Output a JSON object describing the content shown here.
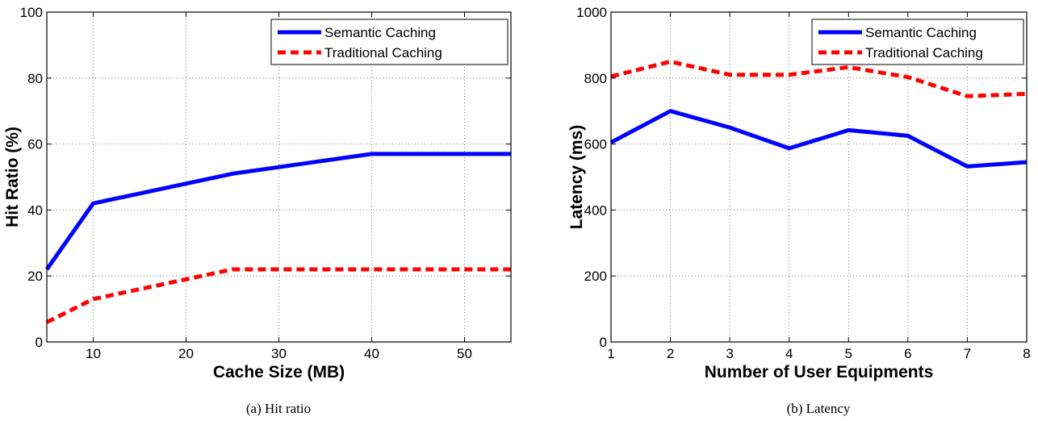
{
  "chart_data": [
    {
      "type": "line",
      "caption": "(a) Hit ratio",
      "xlabel": "Cache Size (MB)",
      "ylabel": "Hit Ratio (%)",
      "xlim": [
        5,
        55
      ],
      "ylim": [
        0,
        100
      ],
      "xticks": [
        10,
        20,
        30,
        40,
        50
      ],
      "yticks": [
        0,
        20,
        40,
        60,
        80,
        100
      ],
      "grid": true,
      "legend_position": "top-right",
      "series": [
        {
          "name": "Semantic Caching",
          "color": "#0000ff",
          "style": "solid",
          "x": [
            5,
            10,
            15,
            20,
            25,
            30,
            35,
            40,
            45,
            50,
            55
          ],
          "y": [
            22,
            42,
            45,
            48,
            51,
            53,
            55,
            57,
            57,
            57,
            57
          ]
        },
        {
          "name": "Traditional Caching",
          "color": "#ff0000",
          "style": "dashed",
          "x": [
            5,
            10,
            15,
            20,
            25,
            30,
            35,
            40,
            45,
            50,
            55
          ],
          "y": [
            6,
            13,
            16,
            19,
            22,
            22,
            22,
            22,
            22,
            22,
            22
          ]
        }
      ]
    },
    {
      "type": "line",
      "caption": "(b) Latency",
      "xlabel": "Number of User Equipments",
      "ylabel": "Latency (ms)",
      "xlim": [
        1,
        8
      ],
      "ylim": [
        0,
        1000
      ],
      "xticks": [
        1,
        2,
        3,
        4,
        5,
        6,
        7,
        8
      ],
      "yticks": [
        0,
        200,
        400,
        600,
        800,
        1000
      ],
      "grid": true,
      "legend_position": "top-right",
      "series": [
        {
          "name": "Semantic Caching",
          "color": "#0000ff",
          "style": "solid",
          "x": [
            1,
            2,
            3,
            4,
            5,
            6,
            7,
            8
          ],
          "y": [
            605,
            700,
            650,
            587,
            642,
            625,
            532,
            545
          ]
        },
        {
          "name": "Traditional Caching",
          "color": "#ff0000",
          "style": "dashed",
          "x": [
            1,
            2,
            3,
            4,
            5,
            6,
            7,
            8
          ],
          "y": [
            805,
            850,
            810,
            810,
            833,
            803,
            745,
            752
          ]
        }
      ]
    }
  ]
}
